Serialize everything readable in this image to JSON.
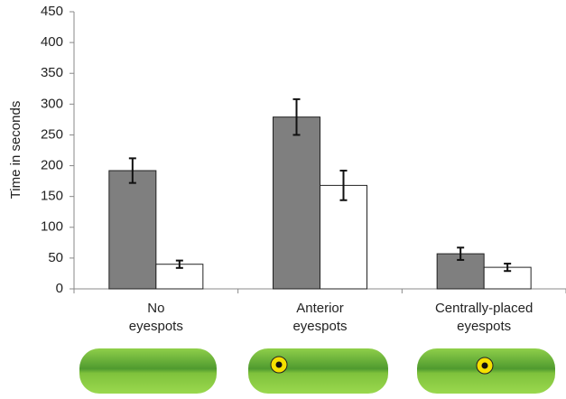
{
  "chart_data": {
    "type": "bar",
    "y_label": "Time in seconds",
    "categories": [
      "No\neyespots",
      "Anterior\neyespots",
      "Centrally-placed\neyespots"
    ],
    "series": [
      {
        "color": "#7f7f7f",
        "values": [
          192,
          279,
          57
        ],
        "errors": [
          20,
          29,
          10
        ]
      },
      {
        "color": "#ffffff",
        "values": [
          40,
          168,
          35
        ],
        "errors": [
          6,
          24,
          6
        ]
      }
    ],
    "ylim": [
      0,
      450
    ],
    "yticks": [
      0,
      50,
      100,
      150,
      200,
      250,
      300,
      350,
      400,
      450
    ]
  }
}
